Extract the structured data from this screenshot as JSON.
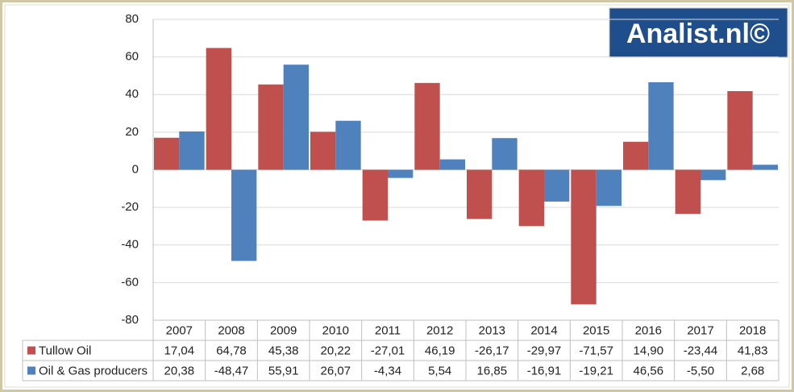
{
  "chart_data": {
    "type": "bar",
    "logo": "Analist.nl©",
    "categories": [
      "2007",
      "2008",
      "2009",
      "2010",
      "2011",
      "2012",
      "2013",
      "2014",
      "2015",
      "2016",
      "2017",
      "2018"
    ],
    "series": [
      {
        "name": "Tullow Oil",
        "color": "#c0504d",
        "values": [
          17.04,
          64.78,
          45.38,
          20.22,
          -27.01,
          46.19,
          -26.17,
          -29.97,
          -71.57,
          14.9,
          -23.44,
          41.83
        ],
        "value_labels": [
          "17,04",
          "64,78",
          "45,38",
          "20,22",
          "-27,01",
          "46,19",
          "-26,17",
          "-29,97",
          "-71,57",
          "14,90",
          "-23,44",
          "41,83"
        ]
      },
      {
        "name": "Oil & Gas producers",
        "color": "#4f81bd",
        "values": [
          20.38,
          -48.47,
          55.91,
          26.07,
          -4.34,
          5.54,
          16.85,
          -16.91,
          -19.21,
          46.56,
          -5.5,
          2.68
        ],
        "value_labels": [
          "20,38",
          "-48,47",
          "55,91",
          "26,07",
          "-4,34",
          "5,54",
          "16,85",
          "-16,91",
          "-19,21",
          "46,56",
          "-5,50",
          "2,68"
        ]
      }
    ],
    "ylim": [
      -80,
      80
    ],
    "yticks": [
      -80,
      -60,
      -40,
      -20,
      0,
      20,
      40,
      60,
      80
    ],
    "grid": true
  }
}
